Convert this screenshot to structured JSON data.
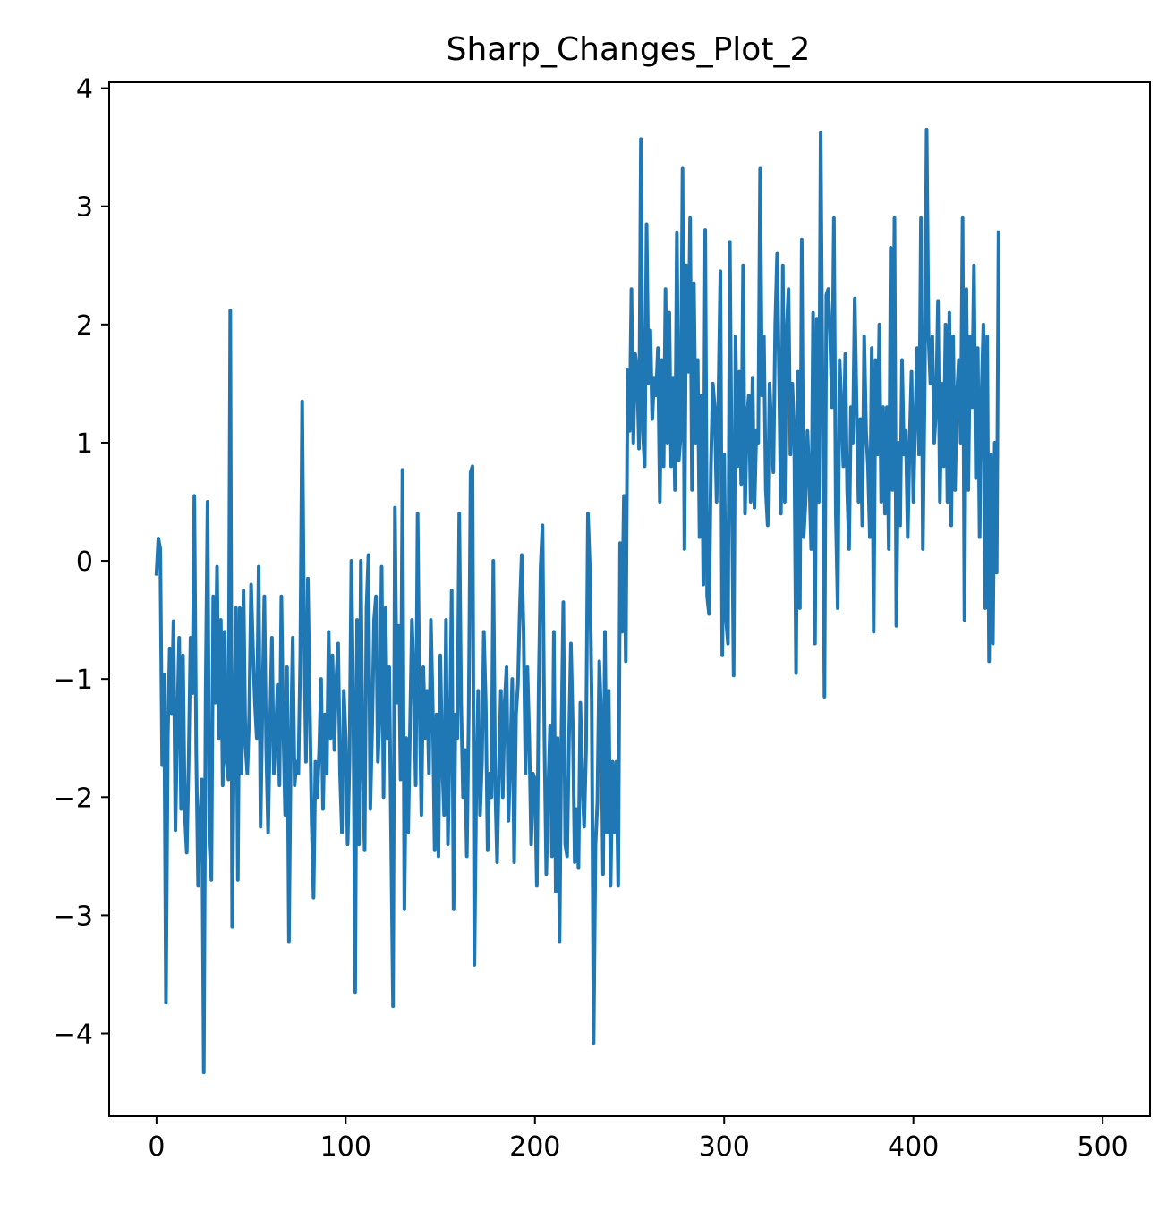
{
  "chart_data": {
    "type": "line",
    "title": "Sharp_Changes_Plot_2",
    "xlabel": "",
    "ylabel": "",
    "xlim": [
      -25,
      525
    ],
    "ylim": [
      -4.7,
      4.05
    ],
    "grid": false,
    "legend": "none",
    "x_ticks": [
      0,
      100,
      200,
      300,
      400,
      500
    ],
    "x_tick_labels": [
      "0",
      "100",
      "200",
      "300",
      "400",
      "500"
    ],
    "y_ticks": [
      -4,
      -3,
      -2,
      -1,
      0,
      1,
      2,
      3,
      4
    ],
    "y_tick_labels": [
      "−4",
      "−3",
      "−2",
      "−1",
      "0",
      "1",
      "2",
      "3",
      "4"
    ],
    "colors": {
      "line": "#1f77b4",
      "axis": "#000000",
      "background": "#ffffff"
    },
    "segments": [
      {
        "x_start": 0,
        "x_end": 250,
        "level": -1.2,
        "spread": 1.0
      },
      {
        "x_start": 251,
        "x_end": 499,
        "level": 1.2,
        "spread": 1.0
      }
    ],
    "series": [
      {
        "x_start": 0,
        "x_step": 1,
        "y": [
          -0.11,
          0.19,
          0.1,
          -1.73,
          -0.96,
          -3.74,
          -1.47,
          -0.74,
          -1.29,
          -0.51,
          -2.28,
          -1.35,
          -0.65,
          -2.1,
          -0.8,
          -2.15,
          -2.47,
          -1.7,
          -0.65,
          -1.12,
          0.55,
          -1.6,
          -2.75,
          -2.2,
          -1.85,
          -4.33,
          -1.1,
          0.5,
          -2.4,
          -2.7,
          -0.3,
          -1.2,
          -0.05,
          -1.5,
          -0.5,
          -1.9,
          -0.6,
          -1.7,
          -1.85,
          2.12,
          -3.1,
          -1.5,
          -0.4,
          -2.7,
          -0.4,
          -1.8,
          -0.25,
          -1.55,
          -1.8,
          -1.3,
          -0.2,
          -0.75,
          -1.2,
          -1.5,
          -0.05,
          -2.25,
          -1.2,
          -0.3,
          -1.6,
          -2.3,
          -1.4,
          -0.65,
          -1.8,
          -1.5,
          -1.05,
          -1.9,
          -0.3,
          -1.4,
          -2.15,
          -0.9,
          -3.22,
          -1.55,
          -0.65,
          -1.9,
          -1.7,
          -1.8,
          -0.8,
          1.35,
          -0.6,
          -1.7,
          -0.15,
          -1.2,
          -2.2,
          -2.85,
          -1.7,
          -2.0,
          -1.6,
          -1.0,
          -2.1,
          -1.3,
          -1.8,
          -0.6,
          -1.5,
          -0.8,
          -1.6,
          -1.0,
          -0.7,
          -1.8,
          -2.3,
          -1.1,
          -1.5,
          -2.4,
          -1.7,
          0.0,
          -1.2,
          -3.65,
          -0.5,
          -2.4,
          0.0,
          -1.75,
          -2.45,
          -0.4,
          0.05,
          -2.1,
          -1.4,
          -0.5,
          -0.3,
          -1.7,
          -1.3,
          -0.05,
          -2.0,
          -0.4,
          -1.5,
          -0.9,
          -2.35,
          -3.77,
          0.45,
          -1.2,
          -0.55,
          -1.85,
          0.77,
          -2.95,
          -1.5,
          -2.3,
          -1.4,
          -0.5,
          -1.0,
          -1.9,
          0.4,
          -1.2,
          -2.15,
          -0.9,
          -1.5,
          -1.1,
          -1.8,
          -0.5,
          -1.25,
          -2.45,
          -1.3,
          -2.5,
          -0.8,
          -1.7,
          -2.15,
          -0.5,
          -2.4,
          -1.5,
          -0.25,
          -2.95,
          -1.3,
          -1.5,
          0.4,
          -1.2,
          -2.0,
          -1.6,
          -2.5,
          -1.3,
          0.75,
          0.8,
          -3.42,
          -1.9,
          -1.1,
          -2.15,
          -1.7,
          -0.6,
          -1.2,
          -2.45,
          -1.8,
          -2.0,
          0.0,
          -1.9,
          -2.55,
          -1.75,
          -1.1,
          -2.0,
          -1.2,
          -0.9,
          -2.2,
          -1.65,
          -1.0,
          -2.55,
          -1.3,
          -1.05,
          -0.4,
          0.05,
          -0.6,
          -1.8,
          -0.9,
          -1.5,
          -2.4,
          -1.8,
          -1.85,
          -2.75,
          -1.05,
          -0.05,
          0.3,
          -1.5,
          -2.65,
          -1.95,
          -1.4,
          -2.5,
          -0.6,
          -2.8,
          -1.5,
          -3.22,
          -1.45,
          -0.35,
          -2.4,
          -2.5,
          -1.5,
          -0.7,
          -1.4,
          -2.55,
          -2.1,
          -2.6,
          -1.2,
          -1.85,
          -2.25,
          -1.6,
          0.4,
          -0.05,
          -1.2,
          -4.08,
          -2.4,
          -2.05,
          -0.85,
          -1.3,
          -2.65,
          -0.6,
          -2.3,
          -1.1,
          -2.75,
          -1.7,
          -2.3,
          -1.7,
          -2.75,
          0.15,
          -0.6,
          0.55,
          -0.85,
          1.62,
          1.1,
          2.3,
          1.0,
          1.75,
          1.6,
          0.95,
          3.57,
          1.1,
          0.8,
          2.85,
          1.5,
          1.95,
          1.2,
          1.55,
          1.4,
          1.8,
          0.5,
          1.7,
          0.8,
          2.3,
          1.0,
          2.1,
          0.8,
          1.55,
          0.6,
          2.78,
          0.85,
          1.05,
          3.32,
          0.1,
          2.5,
          1.6,
          2.9,
          0.6,
          2.35,
          1.0,
          1.7,
          0.2,
          1.4,
          -0.2,
          2.8,
          -0.3,
          -0.45,
          0.8,
          1.5,
          1.3,
          0.5,
          1.4,
          2.45,
          -0.8,
          0.9,
          -0.5,
          -0.7,
          2.7,
          0.7,
          -0.97,
          1.9,
          0.8,
          1.6,
          0.65,
          2.5,
          0.4,
          1.2,
          1.4,
          0.5,
          1.55,
          0.45,
          1.1,
          1.0,
          3.32,
          1.4,
          1.9,
          0.6,
          0.3,
          1.5,
          1.1,
          0.75,
          2.0,
          2.6,
          1.55,
          0.4,
          2.5,
          0.5,
          1.95,
          2.3,
          0.9,
          1.5,
          1.1,
          -0.95,
          1.6,
          -0.4,
          2.72,
          0.2,
          0.5,
          1.1,
          0.7,
          0.1,
          2.1,
          -0.7,
          2.05,
          0.5,
          3.62,
          1.4,
          -1.15,
          2.25,
          2.3,
          1.9,
          1.3,
          2.9,
          0.4,
          -0.4,
          1.7,
          1.3,
          0.8,
          1.75,
          0.6,
          0.1,
          1.3,
          1.0,
          2.22,
          1.3,
          0.5,
          1.2,
          0.3,
          1.9,
          1.1,
          0.8,
          0.2,
          1.8,
          -0.6,
          1.7,
          0.9,
          2.0,
          0.5,
          1.3,
          0.4,
          1.3,
          0.1,
          2.65,
          0.6,
          2.9,
          -0.55,
          1.0,
          0.3,
          1.7,
          0.9,
          1.1,
          0.2,
          1.0,
          1.6,
          0.5,
          1.2,
          1.8,
          0.9,
          2.9,
          0.1,
          1.5,
          3.65,
          1.9,
          1.5,
          1.9,
          1.0,
          1.3,
          2.2,
          0.5,
          1.5,
          0.8,
          2.0,
          0.5,
          2.1,
          0.3,
          1.9,
          0.6,
          1.4,
          1.7,
          1.0,
          2.9,
          -0.5,
          2.3,
          0.6,
          1.9,
          1.3,
          2.5,
          0.7,
          1.8,
          0.2,
          1.4,
          2.0,
          -0.4,
          1.9,
          -0.85,
          0.9,
          -0.7,
          1.0,
          -0.1,
          2.78
        ]
      }
    ]
  }
}
